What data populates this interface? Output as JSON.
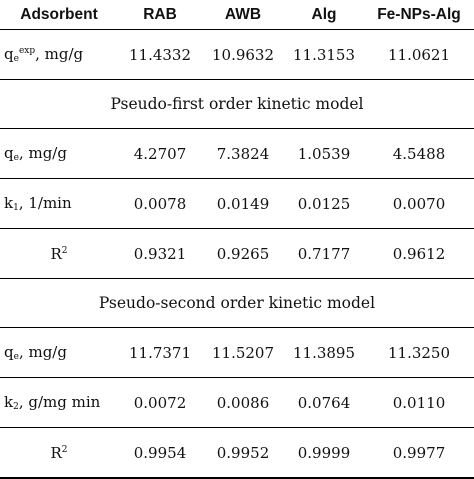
{
  "table": {
    "headers": [
      "Adsorbent",
      "RAB",
      "AWB",
      "Alg",
      "Fe-NPs-Alg"
    ],
    "qexp_row": {
      "label_base": "q",
      "label_sub": "e",
      "label_sup": "exp",
      "label_tail": ", mg/g",
      "values": [
        "11.4332",
        "10.9632",
        "11.3153",
        "11.0621"
      ]
    },
    "first_order": {
      "title": "Pseudo-first order kinetic model",
      "qe": {
        "base": "q",
        "sub": "e",
        "tail": ", mg/g",
        "values": [
          "4.2707",
          "7.3824",
          "1.0539",
          "4.5488"
        ]
      },
      "k1": {
        "base": "k",
        "sub": "1",
        "tail": ", 1/min",
        "values": [
          "0.0078",
          "0.0149",
          "0.0125",
          "0.0070"
        ]
      },
      "r2": {
        "base": "R",
        "sup": "2",
        "values": [
          "0.9321",
          "0.9265",
          "0.7177",
          "0.9612"
        ]
      }
    },
    "second_order": {
      "title": "Pseudo-second order kinetic model",
      "qe": {
        "base": "q",
        "sub": "e",
        "tail": ", mg/g",
        "values": [
          "11.7371",
          "11.5207",
          "11.3895",
          "11.3250"
        ]
      },
      "k2": {
        "base": "k",
        "sub": "2",
        "tail": ", g/mg min",
        "values": [
          "0.0072",
          "0.0086",
          "0.0764",
          "0.0110"
        ]
      },
      "r2": {
        "base": "R",
        "sup": "2",
        "values": [
          "0.9954",
          "0.9952",
          "0.9999",
          "0.9977"
        ]
      }
    }
  }
}
